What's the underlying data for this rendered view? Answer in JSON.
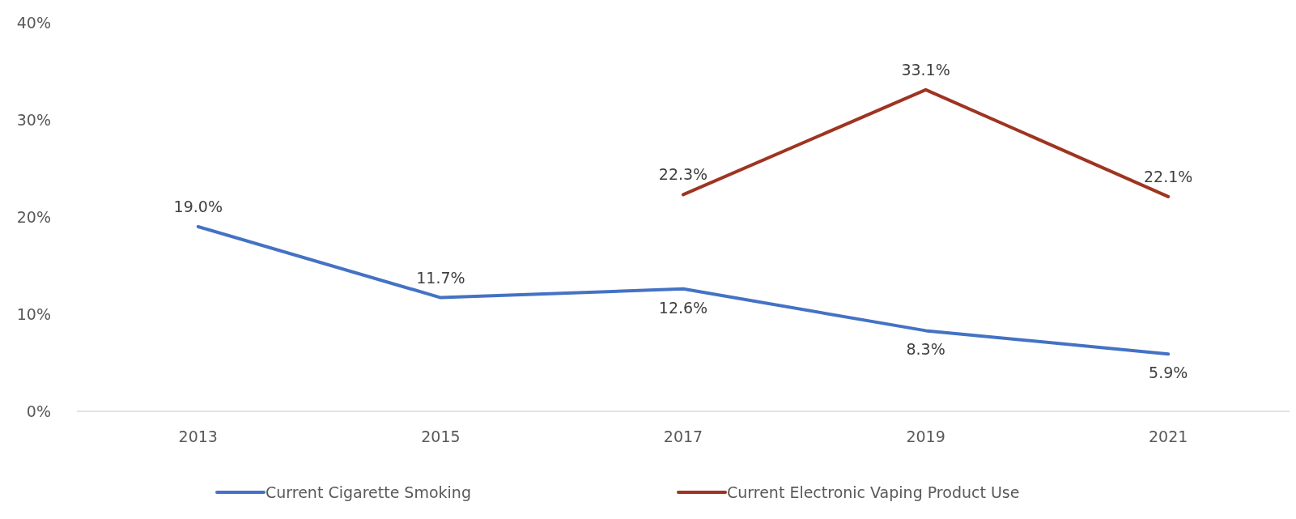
{
  "chart_data": {
    "type": "line",
    "categories": [
      "2013",
      "2015",
      "2017",
      "2019",
      "2021"
    ],
    "series": [
      {
        "name": "Current Cigarette Smoking",
        "color": "#4472c4",
        "values": [
          19.0,
          11.7,
          12.6,
          8.3,
          5.9
        ],
        "value_labels": [
          "19.0%",
          "11.7%",
          "12.6%",
          "8.3%",
          "5.9%"
        ]
      },
      {
        "name": "Current Electronic Vaping Product Use",
        "color": "#9e3421",
        "values": [
          null,
          null,
          22.3,
          33.1,
          22.1
        ],
        "value_labels": [
          null,
          null,
          "22.3%",
          "33.1%",
          "22.1%"
        ]
      }
    ],
    "ylim": [
      0,
      40
    ],
    "yticks": [
      {
        "value": 0,
        "label": "0%"
      },
      {
        "value": 10,
        "label": "10%"
      },
      {
        "value": 20,
        "label": "20%"
      },
      {
        "value": 30,
        "label": "30%"
      },
      {
        "value": 40,
        "label": "40%"
      }
    ],
    "legend": "bottom",
    "marker": "none",
    "line_style": "solid"
  }
}
